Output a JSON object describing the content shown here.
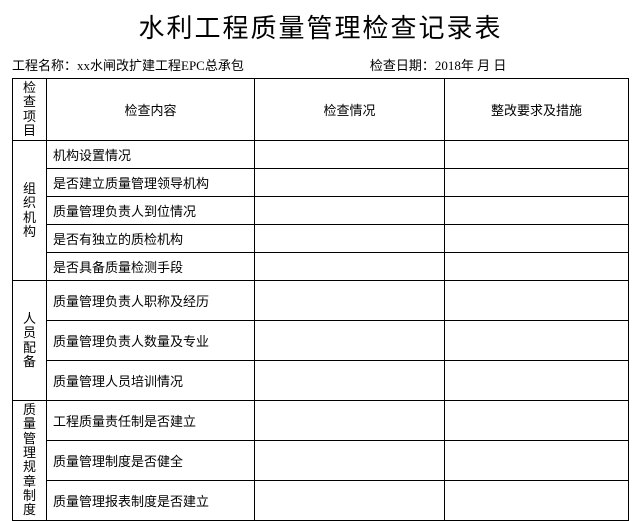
{
  "title": "水利工程质量管理检查记录表",
  "meta": {
    "project_label": "工程名称：",
    "project_value": "xx水闸改扩建工程EPC总承包",
    "date_label": "检查日期：",
    "date_value": "2018年   月    日"
  },
  "headers": {
    "category": "检查项目",
    "content": "检查内容",
    "situation": "检查情况",
    "action": "整改要求及措施"
  },
  "sections": [
    {
      "category": "组织机构",
      "items": [
        "机构设置情况",
        "是否建立质量管理领导机构",
        "质量管理负责人到位情况",
        "是否有独立的质检机构",
        "是否具备质量检测手段"
      ]
    },
    {
      "category": "人员配备",
      "items": [
        "质量管理负责人职称及经历",
        "质量管理负责人数量及专业",
        "质量管理人员培训情况"
      ]
    },
    {
      "category": "质量管理规章制度",
      "items": [
        "工程质量责任制是否建立",
        "质量管理制度是否健全",
        "质量管理报表制度是否建立"
      ]
    }
  ],
  "colors": {
    "text": "#000000",
    "border": "#000000",
    "background": "#ffffff"
  }
}
